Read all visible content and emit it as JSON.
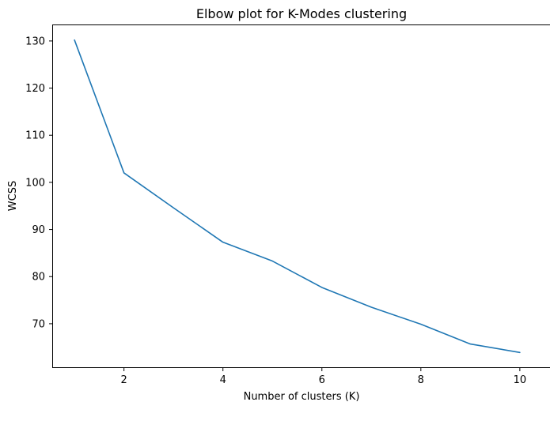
{
  "chart_data": {
    "type": "line",
    "title": "Elbow plot for K-Modes clustering",
    "xlabel": "Number of clusters (K)",
    "ylabel": "WCSS",
    "x": [
      1,
      2,
      3,
      4,
      5,
      6,
      7,
      8,
      9,
      10
    ],
    "series": [
      {
        "values": [
          130.2,
          102.0,
          94.6,
          87.3,
          83.3,
          77.7,
          73.5,
          69.9,
          65.7,
          63.9
        ],
        "color": "#1f77b4"
      }
    ],
    "xlim": [
      0.55,
      10.45
    ],
    "ylim": [
      60.6,
      133.5
    ],
    "xticks": [
      "2",
      "4",
      "6",
      "8",
      "10"
    ],
    "yticks": [
      "70",
      "80",
      "90",
      "100",
      "110",
      "120",
      "130"
    ],
    "grid": false,
    "legend": "none"
  }
}
